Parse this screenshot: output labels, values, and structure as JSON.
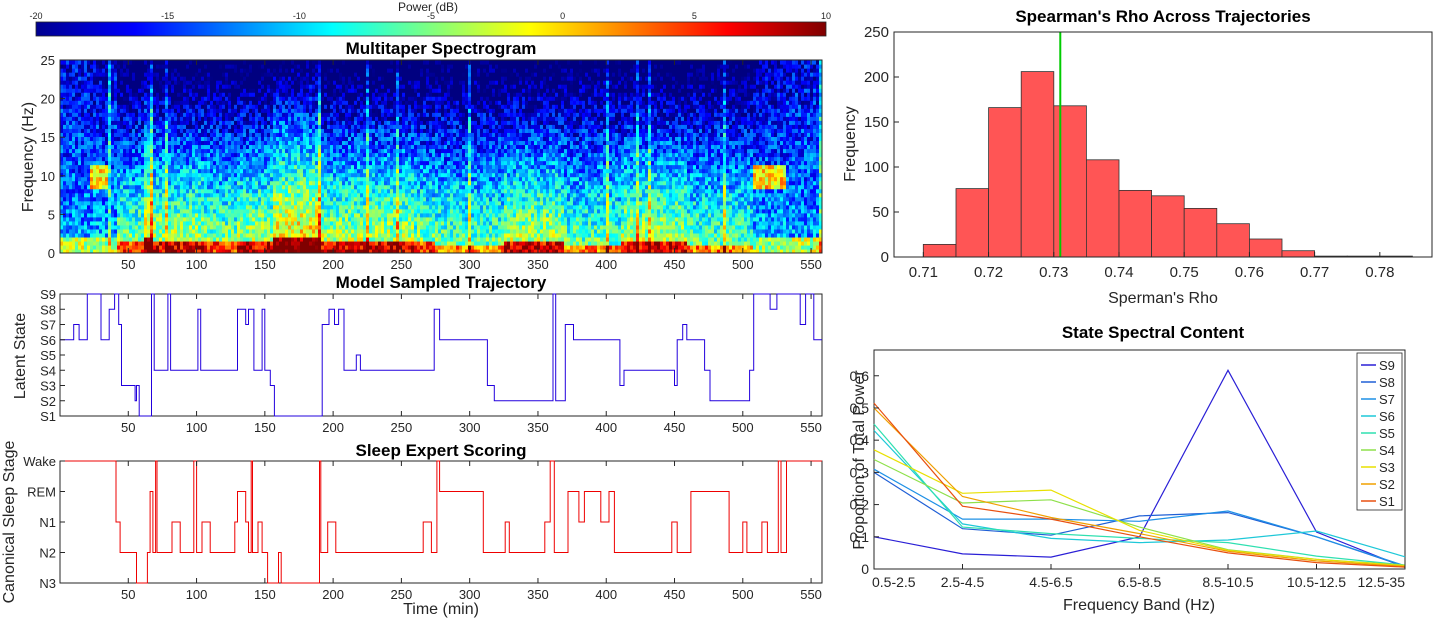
{
  "colorbar": {
    "label": "Power (dB)",
    "ticks": [
      -20,
      -15,
      -10,
      -5,
      0,
      5,
      10
    ],
    "tick_labels": [
      "-20",
      "-15",
      "-10",
      "-5",
      "0",
      "5",
      "10"
    ],
    "range": [
      -20,
      10
    ]
  },
  "spectrogram": {
    "title": "Multitaper Spectrogram",
    "ylabel": "Frequency (Hz)",
    "yticks": [
      0,
      5,
      10,
      15,
      20,
      25
    ],
    "ytick_labels": [
      "0",
      "5",
      "10",
      "15",
      "20",
      "25"
    ],
    "ylim": [
      0,
      25
    ],
    "xlim": [
      0,
      558
    ],
    "xticks": [
      50,
      100,
      150,
      200,
      250,
      300,
      350,
      400,
      450,
      500,
      550
    ],
    "xtick_labels": [
      "50",
      "100",
      "150",
      "200",
      "250",
      "300",
      "350",
      "400",
      "450",
      "500",
      "550"
    ]
  },
  "trajectory": {
    "title": "Model Sampled Trajectory",
    "ylabel": "Latent State",
    "ytick_labels": [
      "S1",
      "S2",
      "S3",
      "S4",
      "S5",
      "S6",
      "S7",
      "S8",
      "S9"
    ],
    "color": "#2200dd"
  },
  "scoring": {
    "title": "Sleep Expert Scoring",
    "ylabel": "Canonical Sleep Stage",
    "xlabel": "Time (min)",
    "ytick_labels": [
      "N3",
      "N2",
      "N1",
      "REM",
      "Wake"
    ],
    "color": "#ee0000"
  },
  "chart_data": [
    {
      "type": "heatmap",
      "title": "Multitaper Spectrogram",
      "xlabel": "Time (min)",
      "ylabel": "Frequency (Hz)",
      "xlim": [
        0,
        558
      ],
      "ylim": [
        0,
        25
      ],
      "colorbar_label": "Power (dB)",
      "clim": [
        -20,
        10
      ],
      "regimes": [
        {
          "start": 0,
          "end": 22,
          "level": "wake"
        },
        {
          "start": 22,
          "end": 35,
          "level": "alpha"
        },
        {
          "start": 35,
          "end": 42,
          "level": "wake"
        },
        {
          "start": 42,
          "end": 62,
          "level": "N1"
        },
        {
          "start": 62,
          "end": 68,
          "level": "N3"
        },
        {
          "start": 68,
          "end": 105,
          "level": "N2"
        },
        {
          "start": 105,
          "end": 130,
          "level": "N1"
        },
        {
          "start": 130,
          "end": 155,
          "level": "N2"
        },
        {
          "start": 155,
          "end": 192,
          "level": "N3"
        },
        {
          "start": 192,
          "end": 260,
          "level": "N2"
        },
        {
          "start": 260,
          "end": 275,
          "level": "N1"
        },
        {
          "start": 275,
          "end": 325,
          "level": "REM"
        },
        {
          "start": 325,
          "end": 368,
          "level": "N2"
        },
        {
          "start": 368,
          "end": 410,
          "level": "REM"
        },
        {
          "start": 410,
          "end": 460,
          "level": "N2"
        },
        {
          "start": 460,
          "end": 508,
          "level": "REM"
        },
        {
          "start": 508,
          "end": 532,
          "level": "alpha"
        },
        {
          "start": 532,
          "end": 558,
          "level": "wake"
        }
      ]
    },
    {
      "type": "line",
      "title": "Model Sampled Trajectory",
      "xlabel": "Time (min)",
      "ylabel": "Latent State",
      "xlim": [
        0,
        558
      ],
      "categories": [
        "S1",
        "S2",
        "S3",
        "S4",
        "S5",
        "S6",
        "S7",
        "S8",
        "S9"
      ],
      "segments": [
        [
          0,
          6
        ],
        [
          10,
          7
        ],
        [
          14,
          6
        ],
        [
          20,
          9
        ],
        [
          30,
          6
        ],
        [
          36,
          8
        ],
        [
          40,
          9
        ],
        [
          43,
          7
        ],
        [
          45,
          3
        ],
        [
          55,
          2
        ],
        [
          56,
          3
        ],
        [
          58,
          1
        ],
        [
          64,
          1
        ],
        [
          67,
          9
        ],
        [
          69,
          4
        ],
        [
          76,
          4
        ],
        [
          79,
          9
        ],
        [
          81,
          4
        ],
        [
          100,
          4
        ],
        [
          101,
          8
        ],
        [
          103,
          4
        ],
        [
          128,
          4
        ],
        [
          130,
          8
        ],
        [
          136,
          7
        ],
        [
          138,
          8
        ],
        [
          142,
          4
        ],
        [
          148,
          8
        ],
        [
          150,
          4
        ],
        [
          154,
          3
        ],
        [
          157,
          1
        ],
        [
          190,
          1
        ],
        [
          192,
          7
        ],
        [
          197,
          8
        ],
        [
          201,
          7
        ],
        [
          204,
          8
        ],
        [
          208,
          4
        ],
        [
          215,
          4
        ],
        [
          217,
          5
        ],
        [
          220,
          4
        ],
        [
          272,
          4
        ],
        [
          274,
          8
        ],
        [
          278,
          6
        ],
        [
          310,
          6
        ],
        [
          313,
          3
        ],
        [
          318,
          2
        ],
        [
          360,
          2
        ],
        [
          361,
          9
        ],
        [
          363,
          2
        ],
        [
          367,
          2
        ],
        [
          370,
          7
        ],
        [
          376,
          6
        ],
        [
          407,
          6
        ],
        [
          410,
          3
        ],
        [
          413,
          4
        ],
        [
          448,
          4
        ],
        [
          450,
          3
        ],
        [
          452,
          6
        ],
        [
          456,
          7
        ],
        [
          459,
          6
        ],
        [
          470,
          6
        ],
        [
          472,
          4
        ],
        [
          476,
          2
        ],
        [
          503,
          2
        ],
        [
          505,
          4
        ],
        [
          508,
          9
        ],
        [
          520,
          8
        ],
        [
          525,
          9
        ],
        [
          542,
          7
        ],
        [
          546,
          9
        ],
        [
          552,
          6
        ]
      ]
    },
    {
      "type": "line",
      "title": "Sleep Expert Scoring",
      "xlabel": "Time (min)",
      "ylabel": "Canonical Sleep Stage",
      "xlim": [
        0,
        558
      ],
      "categories": [
        "N3",
        "N2",
        "N1",
        "REM",
        "Wake"
      ],
      "segments": [
        [
          0,
          4
        ],
        [
          41,
          2
        ],
        [
          44,
          1
        ],
        [
          48,
          1
        ],
        [
          56,
          0
        ],
        [
          64,
          1
        ],
        [
          66,
          3
        ],
        [
          68,
          1
        ],
        [
          70,
          4
        ],
        [
          71,
          1
        ],
        [
          82,
          2
        ],
        [
          88,
          1
        ],
        [
          98,
          4
        ],
        [
          100,
          1
        ],
        [
          104,
          2
        ],
        [
          110,
          1
        ],
        [
          128,
          2
        ],
        [
          130,
          3
        ],
        [
          136,
          2
        ],
        [
          138,
          1
        ],
        [
          140,
          4
        ],
        [
          141,
          1
        ],
        [
          145,
          2
        ],
        [
          148,
          1
        ],
        [
          152,
          0
        ],
        [
          160,
          1
        ],
        [
          162,
          0
        ],
        [
          190,
          4
        ],
        [
          191,
          1
        ],
        [
          196,
          2
        ],
        [
          202,
          1
        ],
        [
          208,
          1
        ],
        [
          214,
          1
        ],
        [
          266,
          2
        ],
        [
          272,
          1
        ],
        [
          276,
          4
        ],
        [
          278,
          3
        ],
        [
          310,
          1
        ],
        [
          320,
          1
        ],
        [
          326,
          2
        ],
        [
          329,
          1
        ],
        [
          355,
          2
        ],
        [
          359,
          4
        ],
        [
          362,
          1
        ],
        [
          367,
          1
        ],
        [
          372,
          3
        ],
        [
          380,
          2
        ],
        [
          384,
          3
        ],
        [
          396,
          2
        ],
        [
          402,
          3
        ],
        [
          406,
          1
        ],
        [
          412,
          1
        ],
        [
          430,
          1
        ],
        [
          448,
          2
        ],
        [
          452,
          1
        ],
        [
          456,
          1
        ],
        [
          462,
          3
        ],
        [
          490,
          1
        ],
        [
          500,
          2
        ],
        [
          503,
          1
        ],
        [
          508,
          1
        ],
        [
          514,
          2
        ],
        [
          518,
          1
        ],
        [
          522,
          1
        ],
        [
          526,
          4
        ],
        [
          528,
          1
        ],
        [
          532,
          4
        ],
        [
          558,
          4
        ]
      ]
    },
    {
      "type": "bar",
      "title": "Spearman's Rho Across Trajectories",
      "xlabel": "Sperman's Rho",
      "ylabel": "Frequency",
      "bin_edges": [
        0.71,
        0.715,
        0.72,
        0.725,
        0.73,
        0.735,
        0.74,
        0.745,
        0.75,
        0.755,
        0.76,
        0.765,
        0.77,
        0.775,
        0.78,
        0.785
      ],
      "values": [
        14,
        76,
        166,
        206,
        168,
        108,
        74,
        68,
        54,
        37,
        20,
        7,
        1,
        1,
        1
      ],
      "color": "#ff5555",
      "marker_line": {
        "x": 0.731,
        "color": "#00cc00"
      },
      "xticks": [
        "0.71",
        "0.72",
        "0.73",
        "0.74",
        "0.75",
        "0.76",
        "0.77",
        "0.78"
      ],
      "yticks": [
        "0",
        "50",
        "100",
        "150",
        "200",
        "250"
      ],
      "xlim": [
        0.7055,
        0.788
      ],
      "ylim": [
        0,
        250
      ]
    },
    {
      "type": "line",
      "title": "State Spectral Content",
      "xlabel": "Frequency Band (Hz)",
      "ylabel": "Proportion of Total Power",
      "categories": [
        "0.5-2.5",
        "2.5-4.5",
        "4.5-6.5",
        "6.5-8.5",
        "8.5-10.5",
        "10.5-12.5",
        "12.5-35"
      ],
      "yticks": [
        "0",
        "0.1",
        "0.2",
        "0.3",
        "0.4",
        "0.5",
        "0.6"
      ],
      "ylim": [
        0,
        0.68
      ],
      "legend": "top-right",
      "series": [
        {
          "name": "S9",
          "color": "#2a1fd6",
          "values": [
            0.1,
            0.047,
            0.037,
            0.1,
            0.617,
            0.115,
            0.005
          ]
        },
        {
          "name": "S8",
          "color": "#1f5fd6",
          "values": [
            0.3,
            0.125,
            0.105,
            0.165,
            0.175,
            0.1,
            0.008
          ]
        },
        {
          "name": "S7",
          "color": "#1e90e6",
          "values": [
            0.31,
            0.155,
            0.155,
            0.148,
            0.18,
            0.1,
            0.01
          ]
        },
        {
          "name": "S6",
          "color": "#1ec8d8",
          "values": [
            0.43,
            0.14,
            0.095,
            0.082,
            0.09,
            0.118,
            0.038
          ]
        },
        {
          "name": "S5",
          "color": "#2fe0b0",
          "values": [
            0.45,
            0.13,
            0.11,
            0.095,
            0.082,
            0.04,
            0.012
          ]
        },
        {
          "name": "S4",
          "color": "#8ee04a",
          "values": [
            0.34,
            0.205,
            0.215,
            0.13,
            0.06,
            0.03,
            0.012
          ]
        },
        {
          "name": "S3",
          "color": "#e8e000",
          "values": [
            0.37,
            0.235,
            0.245,
            0.12,
            0.058,
            0.03,
            0.01
          ]
        },
        {
          "name": "S2",
          "color": "#f0a000",
          "values": [
            0.5,
            0.225,
            0.16,
            0.11,
            0.055,
            0.025,
            0.008
          ]
        },
        {
          "name": "S1",
          "color": "#e85010",
          "values": [
            0.515,
            0.195,
            0.155,
            0.1,
            0.05,
            0.02,
            0.006
          ]
        }
      ]
    }
  ]
}
